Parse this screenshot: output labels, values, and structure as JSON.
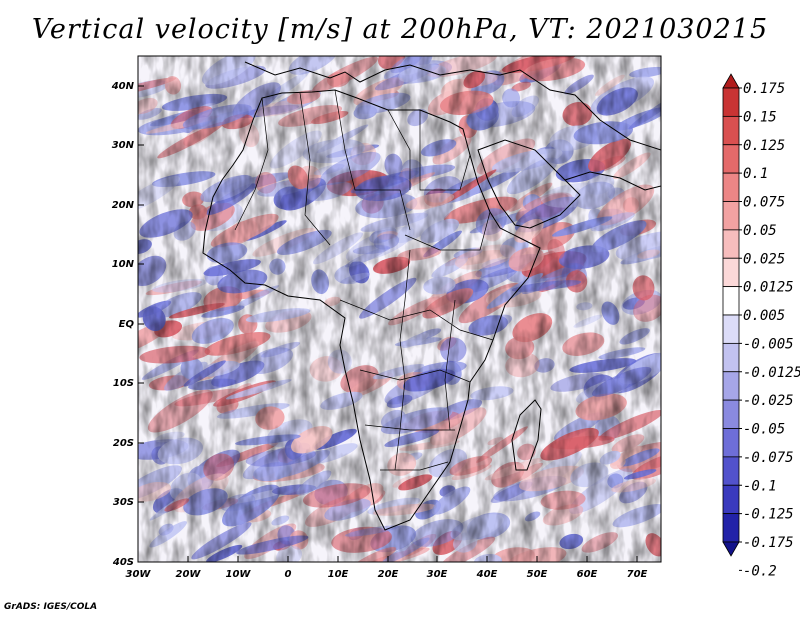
{
  "title": "Vertical velocity [m/s] at 200hPa, VT: 2021030215",
  "credit": "GrADS: IGES/COLA",
  "map": {
    "lat_labels": [
      "40N",
      "30N",
      "20N",
      "10N",
      "EQ",
      "10S",
      "20S",
      "30S",
      "40S"
    ],
    "lon_labels": [
      "30W",
      "20W",
      "10W",
      "0",
      "10E",
      "20E",
      "30E",
      "40E",
      "50E",
      "60E",
      "70E"
    ],
    "lat_range": [
      -40,
      45
    ],
    "lon_range": [
      -30,
      75
    ]
  },
  "colorbar": {
    "labels": [
      "0.175",
      "0.15",
      "0.125",
      "0.1",
      "0.075",
      "0.05",
      "0.025",
      "0.0125",
      "0.005",
      "-0.005",
      "-0.0125",
      "-0.025",
      "-0.05",
      "-0.075",
      "-0.1",
      "-0.125",
      "-0.175",
      "-0.2"
    ],
    "colors": [
      "#b01c1c",
      "#c93434",
      "#d95050",
      "#e46a6a",
      "#ec8686",
      "#f2a2a2",
      "#f7bdbd",
      "#fbd8d8",
      "#ffffff",
      "#dcdcf8",
      "#c2c2f0",
      "#a6a6e8",
      "#8a8ae0",
      "#6e6ed8",
      "#5252cc",
      "#3a3abe",
      "#2222a8",
      "#12128a"
    ]
  },
  "colors": {
    "red": "#e8848a",
    "blue": "#8890e4",
    "background": "#f6f4fb"
  }
}
